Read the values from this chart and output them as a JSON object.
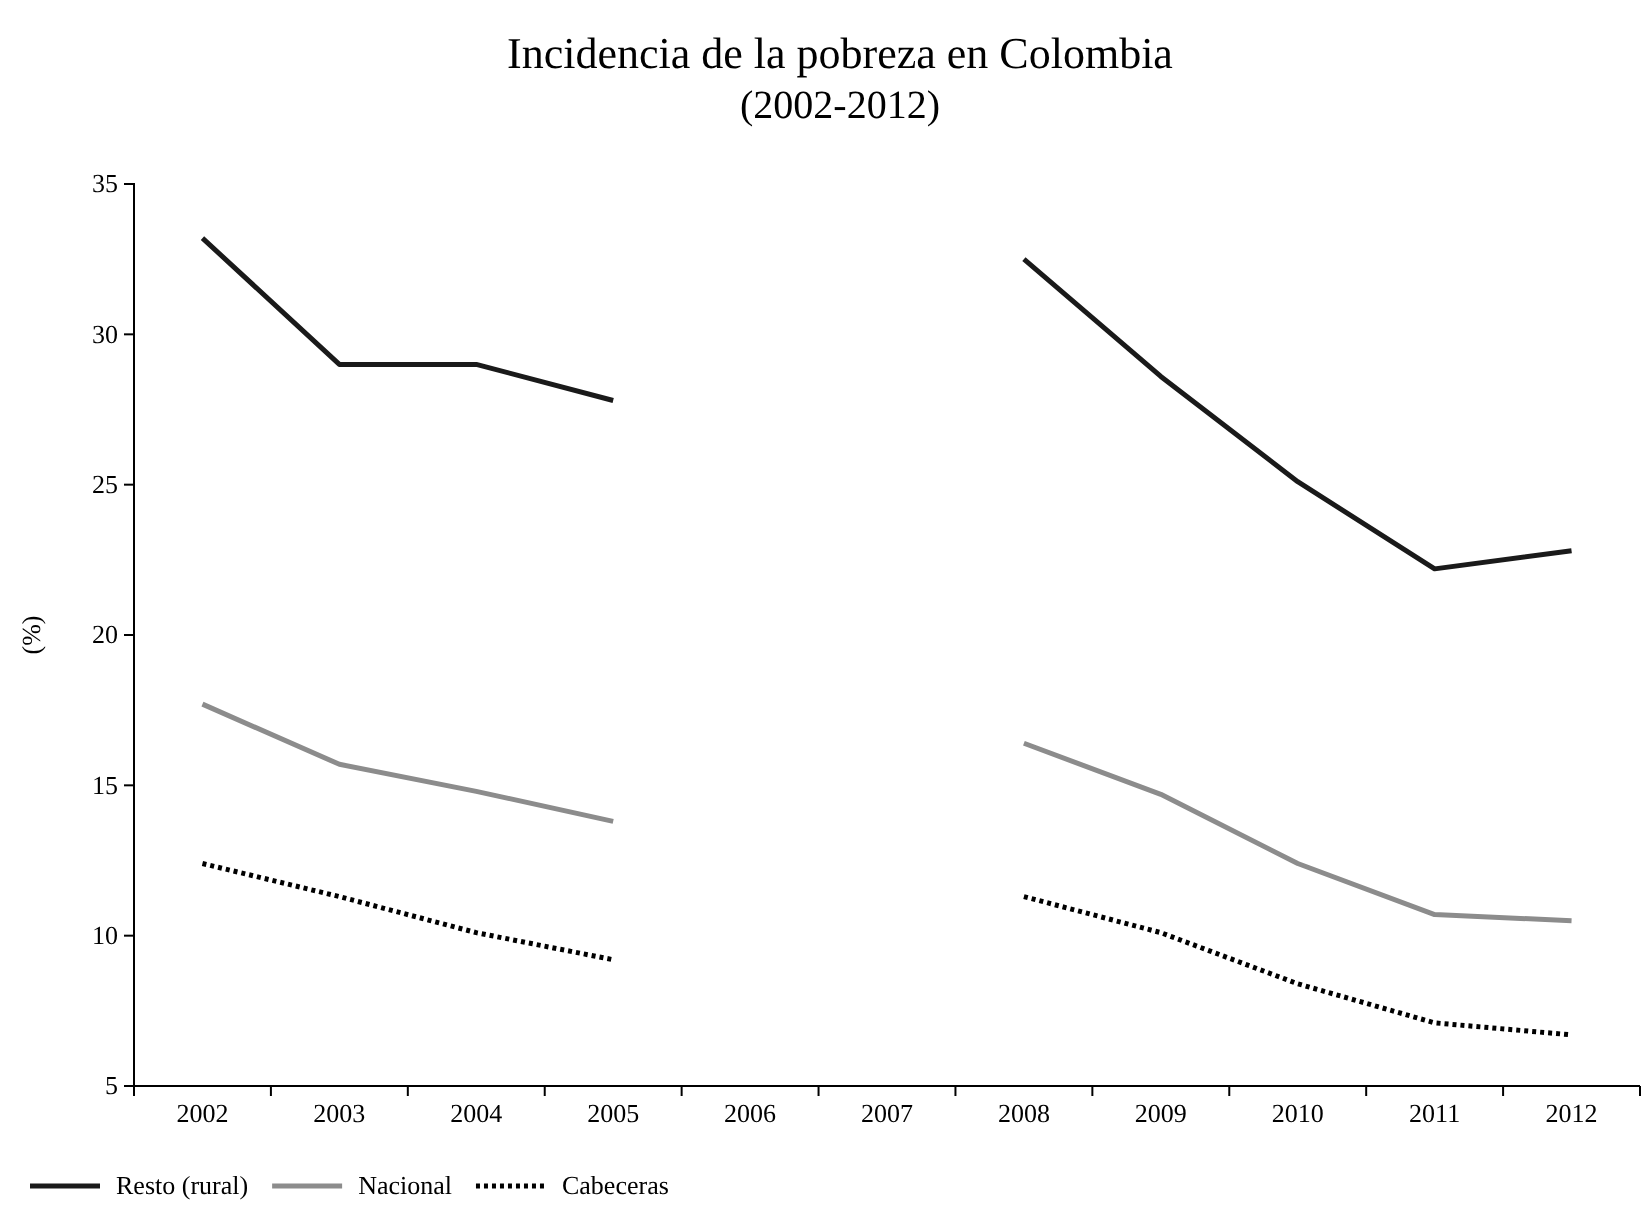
{
  "chart_data": {
    "type": "line",
    "title": "Incidencia de la pobreza en Colombia",
    "subtitle": "(2002-2012)",
    "ylabel": "(%)",
    "categories": [
      "2002",
      "2003",
      "2004",
      "2005",
      "2006",
      "2007",
      "2008",
      "2009",
      "2010",
      "2011",
      "2012"
    ],
    "series": [
      {
        "name": "Resto (rural)",
        "color": "#1a1a1a",
        "line_style": "solid",
        "values": [
          33.2,
          29.0,
          29.0,
          27.8,
          null,
          null,
          32.5,
          28.6,
          25.1,
          22.2,
          22.8
        ]
      },
      {
        "name": "Nacional",
        "color": "#8c8c8c",
        "line_style": "solid",
        "values": [
          17.7,
          15.7,
          14.8,
          13.8,
          null,
          null,
          16.4,
          14.7,
          12.4,
          10.7,
          10.5
        ]
      },
      {
        "name": "Cabeceras",
        "color": "#000000",
        "line_style": "dotted",
        "values": [
          12.4,
          11.3,
          10.1,
          9.2,
          null,
          null,
          11.3,
          10.1,
          8.4,
          7.1,
          6.7
        ]
      }
    ],
    "ylim": [
      5,
      35
    ],
    "yticks": [
      5,
      10,
      15,
      20,
      25,
      30,
      35
    ],
    "grid": false,
    "legend": "bottom",
    "marker": "none"
  }
}
